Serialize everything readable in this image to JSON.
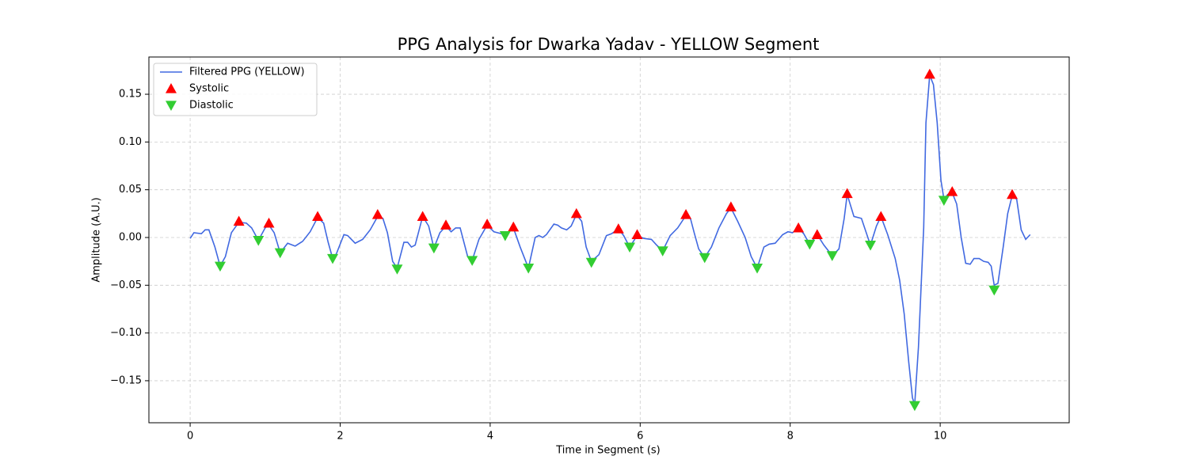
{
  "chart_data": {
    "type": "line",
    "title": "PPG Analysis for Dwarka Yadav - YELLOW Segment",
    "xlabel": "Time in Segment (s)",
    "ylabel": "Amplitude (A.U.)",
    "xlim": [
      -0.55,
      11.72
    ],
    "ylim": [
      -0.194,
      0.189
    ],
    "xticks": [
      0,
      2,
      4,
      6,
      8,
      10
    ],
    "yticks": [
      {
        "value": -0.15,
        "label": "−0.15"
      },
      {
        "value": -0.1,
        "label": "−0.10"
      },
      {
        "value": -0.05,
        "label": "−0.05"
      },
      {
        "value": 0.0,
        "label": "0.00"
      },
      {
        "value": 0.05,
        "label": "0.05"
      },
      {
        "value": 0.1,
        "label": "0.10"
      },
      {
        "value": 0.15,
        "label": "0.15"
      }
    ],
    "grid": true,
    "legend": "upper-left",
    "series": [
      {
        "name": "Filtered PPG (YELLOW)",
        "color": "#4169e1",
        "marker": "none",
        "x": [
          0.0,
          0.05,
          0.15,
          0.2,
          0.25,
          0.33,
          0.4,
          0.47,
          0.55,
          0.65,
          0.75,
          0.82,
          0.91,
          1.0,
          1.05,
          1.12,
          1.2,
          1.3,
          1.4,
          1.5,
          1.6,
          1.7,
          1.78,
          1.84,
          1.9,
          1.95,
          2.05,
          2.1,
          2.2,
          2.3,
          2.4,
          2.5,
          2.57,
          2.63,
          2.7,
          2.76,
          2.85,
          2.9,
          2.95,
          3.0,
          3.1,
          3.18,
          3.25,
          3.33,
          3.41,
          3.48,
          3.54,
          3.6,
          3.7,
          3.76,
          3.85,
          3.96,
          4.05,
          4.2,
          4.31,
          4.4,
          4.51,
          4.6,
          4.65,
          4.7,
          4.75,
          4.85,
          4.9,
          4.95,
          5.02,
          5.08,
          5.15,
          5.22,
          5.28,
          5.35,
          5.45,
          5.55,
          5.62,
          5.71,
          5.78,
          5.86,
          5.96,
          6.05,
          6.15,
          6.22,
          6.3,
          6.4,
          6.5,
          6.61,
          6.67,
          6.72,
          6.78,
          6.86,
          6.95,
          7.05,
          7.15,
          7.21,
          7.3,
          7.4,
          7.48,
          7.56,
          7.65,
          7.72,
          7.8,
          7.9,
          7.97,
          8.03,
          8.11,
          8.18,
          8.26,
          8.36,
          8.45,
          8.56,
          8.65,
          8.72,
          8.76,
          8.85,
          8.95,
          9.07,
          9.15,
          9.21,
          9.3,
          9.4,
          9.46,
          9.52,
          9.58,
          9.63,
          9.66,
          9.71,
          9.78,
          9.81,
          9.86,
          9.91,
          9.96,
          10.01,
          10.05,
          10.1,
          10.16,
          10.22,
          10.28,
          10.34,
          10.4,
          10.45,
          10.52,
          10.58,
          10.64,
          10.68,
          10.72,
          10.77,
          10.84,
          10.9,
          10.96,
          11.02,
          11.08,
          11.14,
          11.2
        ],
        "values": [
          -0.001,
          0.005,
          0.004,
          0.008,
          0.008,
          -0.01,
          -0.03,
          -0.02,
          0.005,
          0.016,
          0.015,
          0.01,
          -0.003,
          0.01,
          0.013,
          0.005,
          -0.016,
          -0.006,
          -0.009,
          -0.004,
          0.006,
          0.021,
          0.015,
          -0.005,
          -0.022,
          -0.017,
          0.003,
          0.002,
          -0.006,
          -0.002,
          0.008,
          0.022,
          0.02,
          0.005,
          -0.025,
          -0.032,
          -0.005,
          -0.005,
          -0.01,
          -0.008,
          0.022,
          0.012,
          -0.011,
          0.005,
          0.012,
          0.006,
          0.01,
          0.01,
          -0.02,
          -0.024,
          -0.002,
          0.013,
          0.006,
          0.003,
          0.01,
          -0.01,
          -0.032,
          0.0,
          0.002,
          0.0,
          0.003,
          0.014,
          0.013,
          0.01,
          0.008,
          0.012,
          0.024,
          0.017,
          -0.01,
          -0.025,
          -0.018,
          0.002,
          0.004,
          0.009,
          0.002,
          -0.01,
          0.002,
          -0.001,
          -0.002,
          -0.008,
          -0.014,
          0.002,
          0.01,
          0.023,
          0.02,
          0.005,
          -0.012,
          -0.021,
          -0.01,
          0.01,
          0.025,
          0.031,
          0.017,
          0.0,
          -0.02,
          -0.032,
          -0.01,
          -0.007,
          -0.006,
          0.003,
          0.006,
          0.005,
          0.01,
          0.004,
          -0.007,
          0.003,
          -0.008,
          -0.019,
          -0.012,
          0.02,
          0.045,
          0.022,
          0.02,
          -0.008,
          0.012,
          0.022,
          0.003,
          -0.022,
          -0.045,
          -0.08,
          -0.13,
          -0.168,
          -0.175,
          -0.115,
          0.01,
          0.12,
          0.17,
          0.16,
          0.12,
          0.06,
          0.04,
          0.045,
          0.047,
          0.035,
          0.0,
          -0.027,
          -0.028,
          -0.022,
          -0.022,
          -0.025,
          -0.026,
          -0.03,
          -0.05,
          -0.048,
          -0.01,
          0.025,
          0.044,
          0.04,
          0.008,
          -0.002,
          0.003
        ]
      },
      {
        "name": "Systolic",
        "color": "#ff0000",
        "marker": "triangle-up",
        "x": [
          0.65,
          1.05,
          1.7,
          2.5,
          3.1,
          3.41,
          3.96,
          4.31,
          5.15,
          5.71,
          5.96,
          6.61,
          7.21,
          8.11,
          8.36,
          8.76,
          9.21,
          9.86,
          10.16,
          10.96
        ],
        "values": [
          0.017,
          0.015,
          0.022,
          0.024,
          0.022,
          0.013,
          0.014,
          0.011,
          0.025,
          0.009,
          0.003,
          0.024,
          0.032,
          0.01,
          0.003,
          0.046,
          0.022,
          0.171,
          0.048,
          0.045
        ]
      },
      {
        "name": "Diastolic",
        "color": "#32cd32",
        "marker": "triangle-down",
        "x": [
          0.4,
          0.91,
          1.2,
          1.9,
          2.76,
          3.25,
          3.76,
          4.2,
          4.51,
          5.35,
          5.86,
          6.3,
          6.86,
          7.56,
          8.26,
          8.56,
          9.07,
          9.66,
          10.05,
          10.72
        ],
        "values": [
          -0.03,
          -0.003,
          -0.016,
          -0.022,
          -0.033,
          -0.011,
          -0.024,
          0.002,
          -0.032,
          -0.026,
          -0.01,
          -0.014,
          -0.021,
          -0.032,
          -0.007,
          -0.019,
          -0.008,
          -0.176,
          0.039,
          -0.055
        ]
      }
    ]
  }
}
